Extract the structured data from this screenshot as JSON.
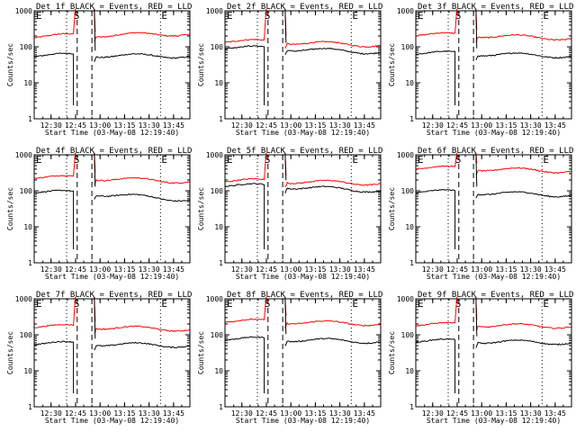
{
  "chart_data": [
    {
      "type": "line",
      "title": "Det 1f BLACK = Events, RED = LLD",
      "xlabel": "Start Time (03-May-08 12:19:40)",
      "ylabel": "Counts/sec",
      "yscale": "log",
      "ylim": [
        1,
        1000
      ],
      "xlim": [
        "12:19:40",
        "13:55:00"
      ],
      "yticks": [
        "1",
        "10",
        "100",
        "1000"
      ],
      "xticks": [
        "12:30",
        "12:45",
        "13:00",
        "13:15",
        "13:30",
        "13:45"
      ],
      "markers": [
        "E",
        "S",
        "E"
      ],
      "grid": false,
      "series": [
        {
          "color": "#ff0000",
          "base": 200,
          "end": 230
        },
        {
          "color": "#000000",
          "base": 60,
          "end": 55
        }
      ]
    },
    {
      "type": "line",
      "title": "Det 2f BLACK = Events, RED = LLD",
      "xlabel": "Start Time (03-May-08 12:19:40)",
      "ylabel": "Counts/sec",
      "yscale": "log",
      "ylim": [
        1,
        1000
      ],
      "xlim": [
        "12:19:40",
        "13:55:00"
      ],
      "yticks": [
        "1",
        "10",
        "100",
        "1000"
      ],
      "xticks": [
        "12:30",
        "12:45",
        "13:00",
        "13:15",
        "13:30",
        "13:45"
      ],
      "markers": [
        "E",
        "S",
        "E"
      ],
      "grid": false,
      "series": [
        {
          "color": "#ff0000",
          "base": 150,
          "end": 110
        },
        {
          "color": "#000000",
          "base": 100,
          "end": 70
        }
      ]
    },
    {
      "type": "line",
      "title": "Det 3f BLACK = Events, RED = LLD",
      "xlabel": "Start Time (03-May-08 12:19:40)",
      "ylabel": "Counts/sec",
      "yscale": "log",
      "ylim": [
        1,
        1000
      ],
      "xlim": [
        "12:19:40",
        "13:55:00"
      ],
      "yticks": [
        "1",
        "10",
        "100",
        "1000"
      ],
      "xticks": [
        "12:30",
        "12:45",
        "13:00",
        "13:15",
        "13:30",
        "13:45"
      ],
      "markers": [
        "E",
        "S",
        "E"
      ],
      "grid": false,
      "series": [
        {
          "color": "#ff0000",
          "base": 230,
          "end": 170
        },
        {
          "color": "#000000",
          "base": 70,
          "end": 55
        }
      ]
    },
    {
      "type": "line",
      "title": "Det 4f BLACK = Events, RED = LLD",
      "xlabel": "Start Time (03-May-08 12:19:40)",
      "ylabel": "Counts/sec",
      "yscale": "log",
      "ylim": [
        1,
        1000
      ],
      "xlim": [
        "12:19:40",
        "13:55:00"
      ],
      "yticks": [
        "1",
        "10",
        "100",
        "1000"
      ],
      "xticks": [
        "12:30",
        "12:45",
        "13:00",
        "13:15",
        "13:30",
        "13:45"
      ],
      "markers": [
        "E",
        "S",
        "E"
      ],
      "grid": false,
      "series": [
        {
          "color": "#ff0000",
          "base": 250,
          "end": 180
        },
        {
          "color": "#000000",
          "base": 100,
          "end": 55
        }
      ]
    },
    {
      "type": "line",
      "title": "Det 5f BLACK = Events, RED = LLD",
      "xlabel": "Start Time (03-May-08 12:19:40)",
      "ylabel": "Counts/sec",
      "yscale": "log",
      "ylim": [
        1,
        1000
      ],
      "xlim": [
        "12:19:40",
        "13:55:00"
      ],
      "yticks": [
        "1",
        "10",
        "100",
        "1000"
      ],
      "xticks": [
        "12:30",
        "12:45",
        "13:00",
        "13:15",
        "13:30",
        "13:45"
      ],
      "markers": [
        "E",
        "S",
        "E"
      ],
      "grid": false,
      "series": [
        {
          "color": "#ff0000",
          "base": 200,
          "end": 160
        },
        {
          "color": "#000000",
          "base": 150,
          "end": 100
        }
      ]
    },
    {
      "type": "line",
      "title": "Det 6f BLACK = Events, RED = LLD",
      "xlabel": "Start Time (03-May-08 12:19:40)",
      "ylabel": "Counts/sec",
      "yscale": "log",
      "ylim": [
        1,
        1000
      ],
      "xlim": [
        "12:19:40",
        "13:55:00"
      ],
      "yticks": [
        "1",
        "10",
        "100",
        "1000"
      ],
      "xticks": [
        "12:30",
        "12:45",
        "13:00",
        "13:15",
        "13:30",
        "13:45"
      ],
      "markers": [
        "E",
        "S",
        "E"
      ],
      "grid": false,
      "series": [
        {
          "color": "#ff0000",
          "base": 450,
          "end": 350
        },
        {
          "color": "#000000",
          "base": 100,
          "end": 75
        }
      ]
    },
    {
      "type": "line",
      "title": "Det 7f BLACK = Events, RED = LLD",
      "xlabel": "Start Time (03-May-08 12:19:40)",
      "ylabel": "Counts/sec",
      "yscale": "log",
      "ylim": [
        1,
        1000
      ],
      "xlim": [
        "12:19:40",
        "13:55:00"
      ],
      "yticks": [
        "1",
        "10",
        "100",
        "1000"
      ],
      "xticks": [
        "12:30",
        "12:45",
        "13:00",
        "13:15",
        "13:30",
        "13:45"
      ],
      "markers": [
        "E",
        "S",
        "E"
      ],
      "grid": false,
      "series": [
        {
          "color": "#ff0000",
          "base": 180,
          "end": 140
        },
        {
          "color": "#000000",
          "base": 60,
          "end": 50
        }
      ]
    },
    {
      "type": "line",
      "title": "Det 8f BLACK = Events, RED = LLD",
      "xlabel": "Start Time (03-May-08 12:19:40)",
      "ylabel": "Counts/sec",
      "yscale": "log",
      "ylim": [
        1,
        1000
      ],
      "xlim": [
        "12:19:40",
        "13:55:00"
      ],
      "yticks": [
        "1",
        "10",
        "100",
        "1000"
      ],
      "xticks": [
        "12:30",
        "12:45",
        "13:00",
        "13:15",
        "13:30",
        "13:45"
      ],
      "markers": [
        "E",
        "S",
        "E"
      ],
      "grid": false,
      "series": [
        {
          "color": "#ff0000",
          "base": 250,
          "end": 200
        },
        {
          "color": "#000000",
          "base": 80,
          "end": 65
        }
      ]
    },
    {
      "type": "line",
      "title": "Det 9f BLACK = Events, RED = LLD",
      "xlabel": "Start Time (03-May-08 12:19:40)",
      "ylabel": "Counts/sec",
      "yscale": "log",
      "ylim": [
        1,
        1000
      ],
      "xlim": [
        "12:19:40",
        "13:55:00"
      ],
      "yticks": [
        "1",
        "10",
        "100",
        "1000"
      ],
      "xticks": [
        "12:30",
        "12:45",
        "13:00",
        "13:15",
        "13:30",
        "13:45"
      ],
      "markers": [
        "E",
        "S",
        "E"
      ],
      "grid": false,
      "series": [
        {
          "color": "#ff0000",
          "base": 200,
          "end": 170
        },
        {
          "color": "#000000",
          "base": 70,
          "end": 60
        }
      ]
    }
  ]
}
